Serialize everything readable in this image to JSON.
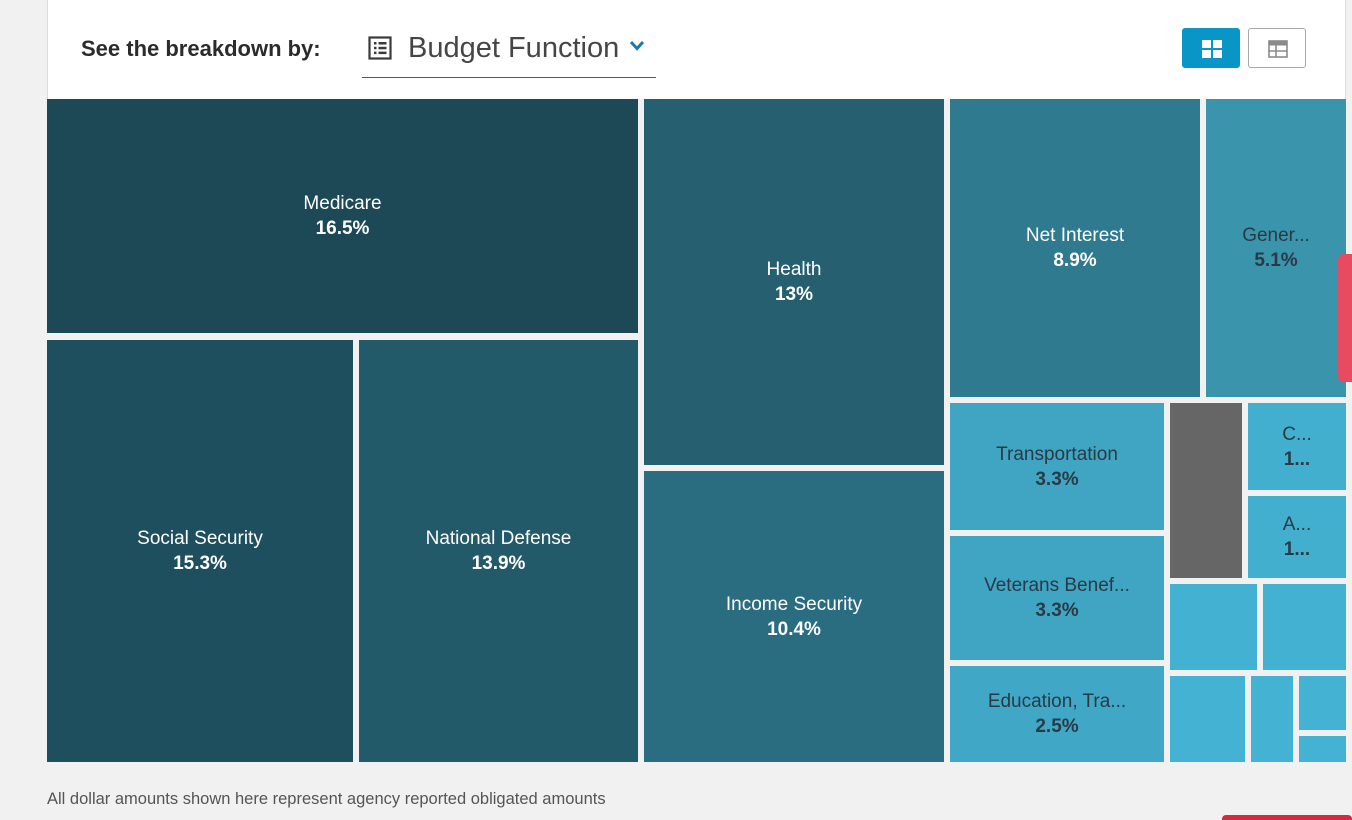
{
  "header": {
    "breakdown_label": "See the breakdown by:",
    "selected_breakdown": "Budget Function",
    "view_modes": [
      {
        "name": "treemap",
        "icon": "grid-icon",
        "active": true
      },
      {
        "name": "table",
        "icon": "table-icon",
        "active": false
      }
    ],
    "accent_color": "#0a95c7"
  },
  "chart_data": {
    "type": "treemap",
    "tiles": [
      {
        "name": "Medicare",
        "value_label": "16.5%",
        "value": 16.5,
        "color": "#1d4856",
        "text": "light"
      },
      {
        "name": "Social Security",
        "value_label": "15.3%",
        "value": 15.3,
        "color": "#1e4f5e",
        "text": "light"
      },
      {
        "name": "National Defense",
        "value_label": "13.9%",
        "value": 13.9,
        "color": "#235a69",
        "text": "light"
      },
      {
        "name": "Health",
        "value_label": "13%",
        "value": 13,
        "color": "#265f70",
        "text": "light"
      },
      {
        "name": "Income Security",
        "value_label": "10.4%",
        "value": 10.4,
        "color": "#2a6c80",
        "text": "light"
      },
      {
        "name": "Net Interest",
        "value_label": "8.9%",
        "value": 8.9,
        "color": "#2f7a8f",
        "text": "light"
      },
      {
        "name": "Gener...",
        "value_label": "5.1%",
        "value": 5.1,
        "color": "#3a94ab",
        "text": "dark"
      },
      {
        "name": "Transportation",
        "value_label": "3.3%",
        "value": 3.3,
        "color": "#3fa5c3",
        "text": "dark"
      },
      {
        "name": "Veterans Benef...",
        "value_label": "3.3%",
        "value": 3.3,
        "color": "#3fa5c3",
        "text": "dark"
      },
      {
        "name": "Education, Tra...",
        "value_label": "2.5%",
        "value": 2.5,
        "color": "#40a8c6",
        "text": "dark"
      },
      {
        "name": "",
        "value_label": "",
        "value": null,
        "color": "#666666",
        "text": "dark"
      },
      {
        "name": "C...",
        "value_label": "1...",
        "value": null,
        "color": "#42afcf",
        "text": "dark"
      },
      {
        "name": "A...",
        "value_label": "1...",
        "value": null,
        "color": "#42afcf",
        "text": "dark"
      },
      {
        "name": "",
        "value_label": "",
        "value": null,
        "color": "#43b1d1",
        "text": "dark"
      },
      {
        "name": "",
        "value_label": "",
        "value": null,
        "color": "#43b1d1",
        "text": "dark"
      },
      {
        "name": "",
        "value_label": "",
        "value": null,
        "color": "#44b3d3",
        "text": "dark"
      },
      {
        "name": "",
        "value_label": "",
        "value": null,
        "color": "#44b3d3",
        "text": "dark"
      },
      {
        "name": "",
        "value_label": "",
        "value": null,
        "color": "#44b3d3",
        "text": "dark"
      },
      {
        "name": "",
        "value_label": "",
        "value": null,
        "color": "#44b3d3",
        "text": "dark"
      }
    ]
  },
  "footer": {
    "note": "All dollar amounts shown here represent agency reported obligated amounts"
  }
}
